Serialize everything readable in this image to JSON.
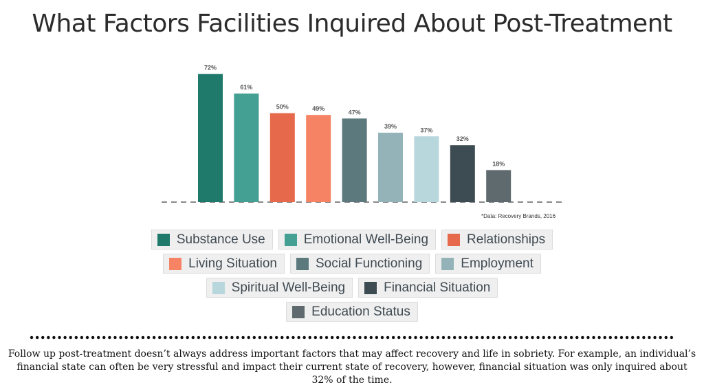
{
  "chart_data": {
    "type": "bar",
    "title": "What Factors Facilities Inquired About Post-Treatment",
    "categories": [
      "Substance Use",
      "Emotional Well-Being",
      "Relationships",
      "Living Situation",
      "Social Functioning",
      "Employment",
      "Spiritual Well-Being",
      "Financial Situation",
      "Education Status"
    ],
    "values": [
      72,
      61,
      50,
      49,
      47,
      39,
      37,
      32,
      18
    ],
    "data_labels": [
      "72%",
      "61%",
      "50%",
      "49%",
      "47%",
      "39%",
      "37%",
      "32%",
      "18%"
    ],
    "colors": [
      "#1f7a6c",
      "#44a093",
      "#e5694a",
      "#f58364",
      "#5c7a7d",
      "#93b3b8",
      "#b7d7dc",
      "#3d4c53",
      "#5e6a6d"
    ],
    "ylim": [
      0,
      80
    ],
    "grid": false,
    "baseline": "dashed",
    "legend_placement": "bottom",
    "source": "*Data: Recovery Brands, 2016"
  },
  "legend": {
    "rows": [
      [
        {
          "label": "Substance Use",
          "color": "#1f7a6c"
        },
        {
          "label": "Emotional Well-Being",
          "color": "#44a093"
        },
        {
          "label": "Relationships",
          "color": "#e5694a"
        }
      ],
      [
        {
          "label": "Living Situation",
          "color": "#f58364"
        },
        {
          "label": "Social Functioning",
          "color": "#5c7a7d"
        },
        {
          "label": "Employment",
          "color": "#93b3b8"
        }
      ],
      [
        {
          "label": "Spiritual Well-Being",
          "color": "#b7d7dc"
        },
        {
          "label": "Financial Situation",
          "color": "#3d4c53"
        }
      ],
      [
        {
          "label": "Education Status",
          "color": "#5e6a6d"
        }
      ]
    ]
  },
  "caption": "Follow up post-treatment doesn’t always address important factors that may affect recovery and life in sobriety. For example, an individual’s financial state can often be very stressful and impact their current state of recovery, however, financial situation was only inquired about 32% of the time."
}
